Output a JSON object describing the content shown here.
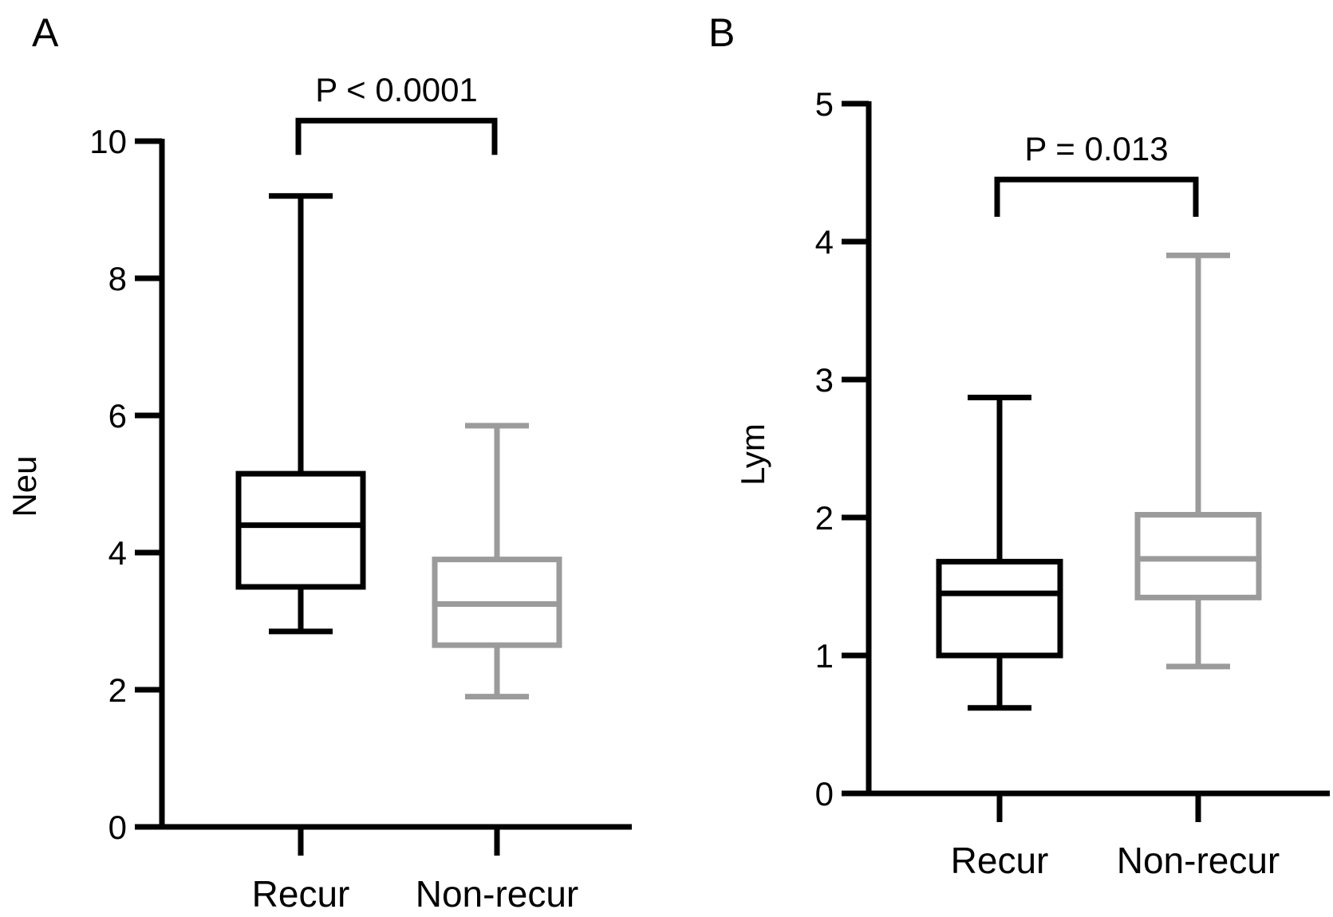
{
  "chart_data": [
    {
      "type": "box",
      "panel_label": "A",
      "ylabel": "Neu",
      "ylim": [
        0,
        10
      ],
      "yticks": [
        0,
        2,
        4,
        6,
        8,
        10
      ],
      "categories": [
        "Recur",
        "Non-recur"
      ],
      "boxes": [
        {
          "category": "Recur",
          "min": 2.85,
          "q1": 3.5,
          "median": 4.4,
          "q3": 5.15,
          "max": 9.2,
          "color": "#000000"
        },
        {
          "category": "Non-recur",
          "min": 1.9,
          "q1": 2.65,
          "median": 3.25,
          "q3": 3.9,
          "max": 5.85,
          "color": "#9b9b9b"
        }
      ],
      "annotation": {
        "text": "P < 0.0001",
        "bracket_top": 10.3,
        "bracket_bottom": 9.8
      },
      "grid": false,
      "legend": "none"
    },
    {
      "type": "box",
      "panel_label": "B",
      "ylabel": "Lym",
      "ylim": [
        0,
        5
      ],
      "yticks": [
        0,
        1,
        2,
        3,
        4,
        5
      ],
      "categories": [
        "Recur",
        "Non-recur"
      ],
      "boxes": [
        {
          "category": "Recur",
          "min": 0.62,
          "q1": 1.0,
          "median": 1.45,
          "q3": 1.68,
          "max": 2.87,
          "color": "#000000"
        },
        {
          "category": "Non-recur",
          "min": 0.92,
          "q1": 1.42,
          "median": 1.7,
          "q3": 2.02,
          "max": 3.9,
          "color": "#9b9b9b"
        }
      ],
      "annotation": {
        "text": "P = 0.013",
        "bracket_top": 4.45,
        "bracket_bottom": 4.18
      },
      "grid": false,
      "legend": "none"
    }
  ]
}
